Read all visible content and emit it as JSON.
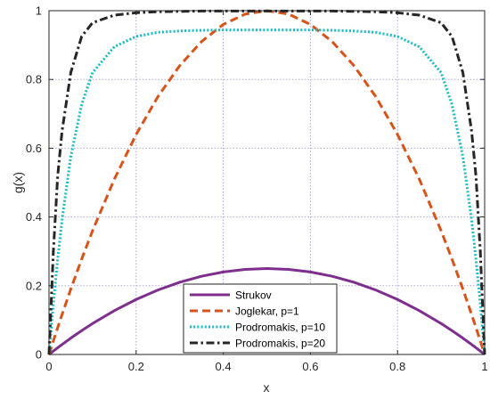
{
  "chart_data": {
    "type": "line",
    "title": "",
    "xlabel": "x",
    "ylabel": "g(x)",
    "xlim": [
      0,
      1
    ],
    "ylim": [
      0,
      1
    ],
    "xticks": [
      0,
      0.2,
      0.4,
      0.6,
      0.8,
      1
    ],
    "yticks": [
      0,
      0.2,
      0.4,
      0.6,
      0.8,
      1
    ],
    "xtick_labels": [
      "0",
      "0.2",
      "0.4",
      "0.6",
      "0.8",
      "1"
    ],
    "ytick_labels": [
      "0",
      "0.2",
      "0.4",
      "0.6",
      "0.8",
      "1"
    ],
    "grid": true,
    "legend_position": "bottom-center",
    "x": [
      0,
      0.01,
      0.02,
      0.03,
      0.05,
      0.075,
      0.1,
      0.15,
      0.2,
      0.25,
      0.3,
      0.35,
      0.4,
      0.45,
      0.5,
      0.55,
      0.6,
      0.65,
      0.7,
      0.75,
      0.8,
      0.85,
      0.9,
      0.925,
      0.95,
      0.97,
      0.98,
      0.99,
      1
    ],
    "series": [
      {
        "name": "Strukov",
        "color": "#7e2f8e",
        "style": "solid",
        "values": [
          0,
          0.0099,
          0.0196,
          0.0291,
          0.0475,
          0.0694,
          0.09,
          0.1275,
          0.16,
          0.1875,
          0.21,
          0.2275,
          0.24,
          0.2475,
          0.25,
          0.2475,
          0.24,
          0.2275,
          0.21,
          0.1875,
          0.16,
          0.1275,
          0.09,
          0.0694,
          0.0475,
          0.0291,
          0.0196,
          0.0099,
          0
        ]
      },
      {
        "name": "Joglekar, p=1",
        "color": "#d95319",
        "style": "dashed",
        "values": [
          0,
          0.0396,
          0.0784,
          0.1164,
          0.19,
          0.2775,
          0.36,
          0.51,
          0.64,
          0.75,
          0.84,
          0.91,
          0.96,
          0.99,
          1,
          0.99,
          0.96,
          0.91,
          0.84,
          0.75,
          0.64,
          0.51,
          0.36,
          0.2775,
          0.19,
          0.1164,
          0.0784,
          0.0396,
          0
        ]
      },
      {
        "name": "Prodromakis, p=10",
        "color": "#17bcc4",
        "style": "dotted",
        "values": [
          0,
          0.148,
          0.278,
          0.392,
          0.576,
          0.727,
          0.82,
          0.895,
          0.925,
          0.937,
          0.941,
          0.943,
          0.944,
          0.944,
          0.944,
          0.944,
          0.944,
          0.943,
          0.941,
          0.937,
          0.925,
          0.895,
          0.82,
          0.727,
          0.576,
          0.392,
          0.278,
          0.148,
          0
        ]
      },
      {
        "name": "Prodromakis, p=20",
        "color": "#262626",
        "style": "dashdot",
        "values": [
          0,
          0.3,
          0.52,
          0.65,
          0.82,
          0.925,
          0.965,
          0.987,
          0.994,
          0.997,
          0.998,
          0.999,
          0.999,
          0.999,
          0.999,
          0.999,
          0.999,
          0.999,
          0.998,
          0.997,
          0.994,
          0.987,
          0.965,
          0.925,
          0.82,
          0.65,
          0.52,
          0.3,
          0
        ]
      }
    ]
  }
}
